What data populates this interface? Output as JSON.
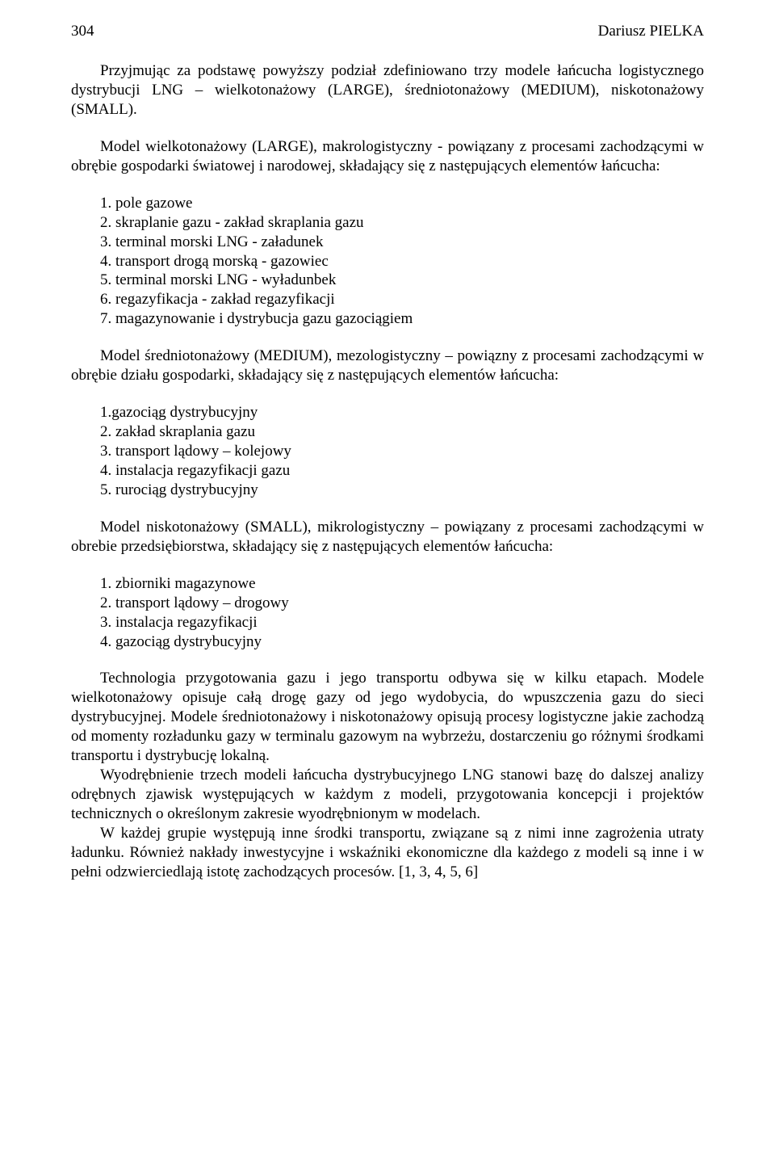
{
  "page_number": "304",
  "author": "Dariusz PIELKA",
  "p_intro": "Przyjmując za podstawę powyższy podział zdefiniowano trzy modele łańcucha logistycznego dystrybucji LNG – wielkotonażowy (LARGE), średniotonażowy (MEDIUM), niskotonażowy (SMALL).",
  "p_large": "Model wielkotonażowy (LARGE), makrologistyczny - powiązany z procesami zachodzącymi w obrębie gospodarki światowej i narodowej, składający się z następujących elementów łańcucha:",
  "list_large": [
    "1. pole gazowe",
    "2. skraplanie gazu - zakład skraplania gazu",
    "3. terminal morski LNG - załadunek",
    "4. transport drogą morską - gazowiec",
    "5. terminal morski LNG - wyładunbek",
    "6. regazyfikacja - zakład regazyfikacji",
    "7. magazynowanie i dystrybucja gazu gazociągiem"
  ],
  "p_medium": "Model średniotonażowy (MEDIUM), mezologistyczny – powiązny z procesami zachodzącymi w obrębie działu gospodarki, składający się z następujących elementów łańcucha:",
  "list_medium": [
    "1.gazociąg dystrybucyjny",
    "2. zakład skraplania gazu",
    "3. transport lądowy – kolejowy",
    "4. instalacja regazyfikacji gazu",
    "5. rurociąg dystrybucyjny"
  ],
  "p_small": "Model niskotonażowy (SMALL), mikrologistyczny – powiązany z procesami zachodzącymi w obrebie przedsiębiorstwa, składający się z następujących elementów łańcucha:",
  "list_small": [
    "1. zbiorniki magazynowe",
    "2. transport lądowy – drogowy",
    "3. instalacja regazyfikacji",
    "4. gazociąg dystrybucyjny"
  ],
  "p_tech1": "Technologia przygotowania gazu i jego transportu odbywa się w kilku etapach. Modele wielkotonażowy opisuje całą drogę gazy od jego wydobycia, do wpuszczenia gazu do sieci dystrybucyjnej. Modele średniotonażowy i niskotonażowy opisują procesy logistyczne jakie zachodzą od momenty rozładunku gazy w terminalu gazowym na wybrzeżu, dostarczeniu go różnymi środkami transportu i dystrybucję lokalną.",
  "p_tech2": "Wyodrębnienie trzech modeli łańcucha dystrybucyjnego LNG stanowi bazę do dalszej analizy odrębnych zjawisk występujących w każdym z modeli, przygotowania koncepcji i projektów technicznych o określonym zakresie wyodrębnionym w modelach.",
  "p_tech3": "W każdej grupie występują inne środki transportu, związane są z nimi inne zagrożenia utraty ładunku. Również nakłady inwestycyjne i wskaźniki ekonomiczne dla każdego z modeli są inne i w pełni odzwierciedlają istotę zachodzących procesów. [1, 3, 4, 5, 6]"
}
